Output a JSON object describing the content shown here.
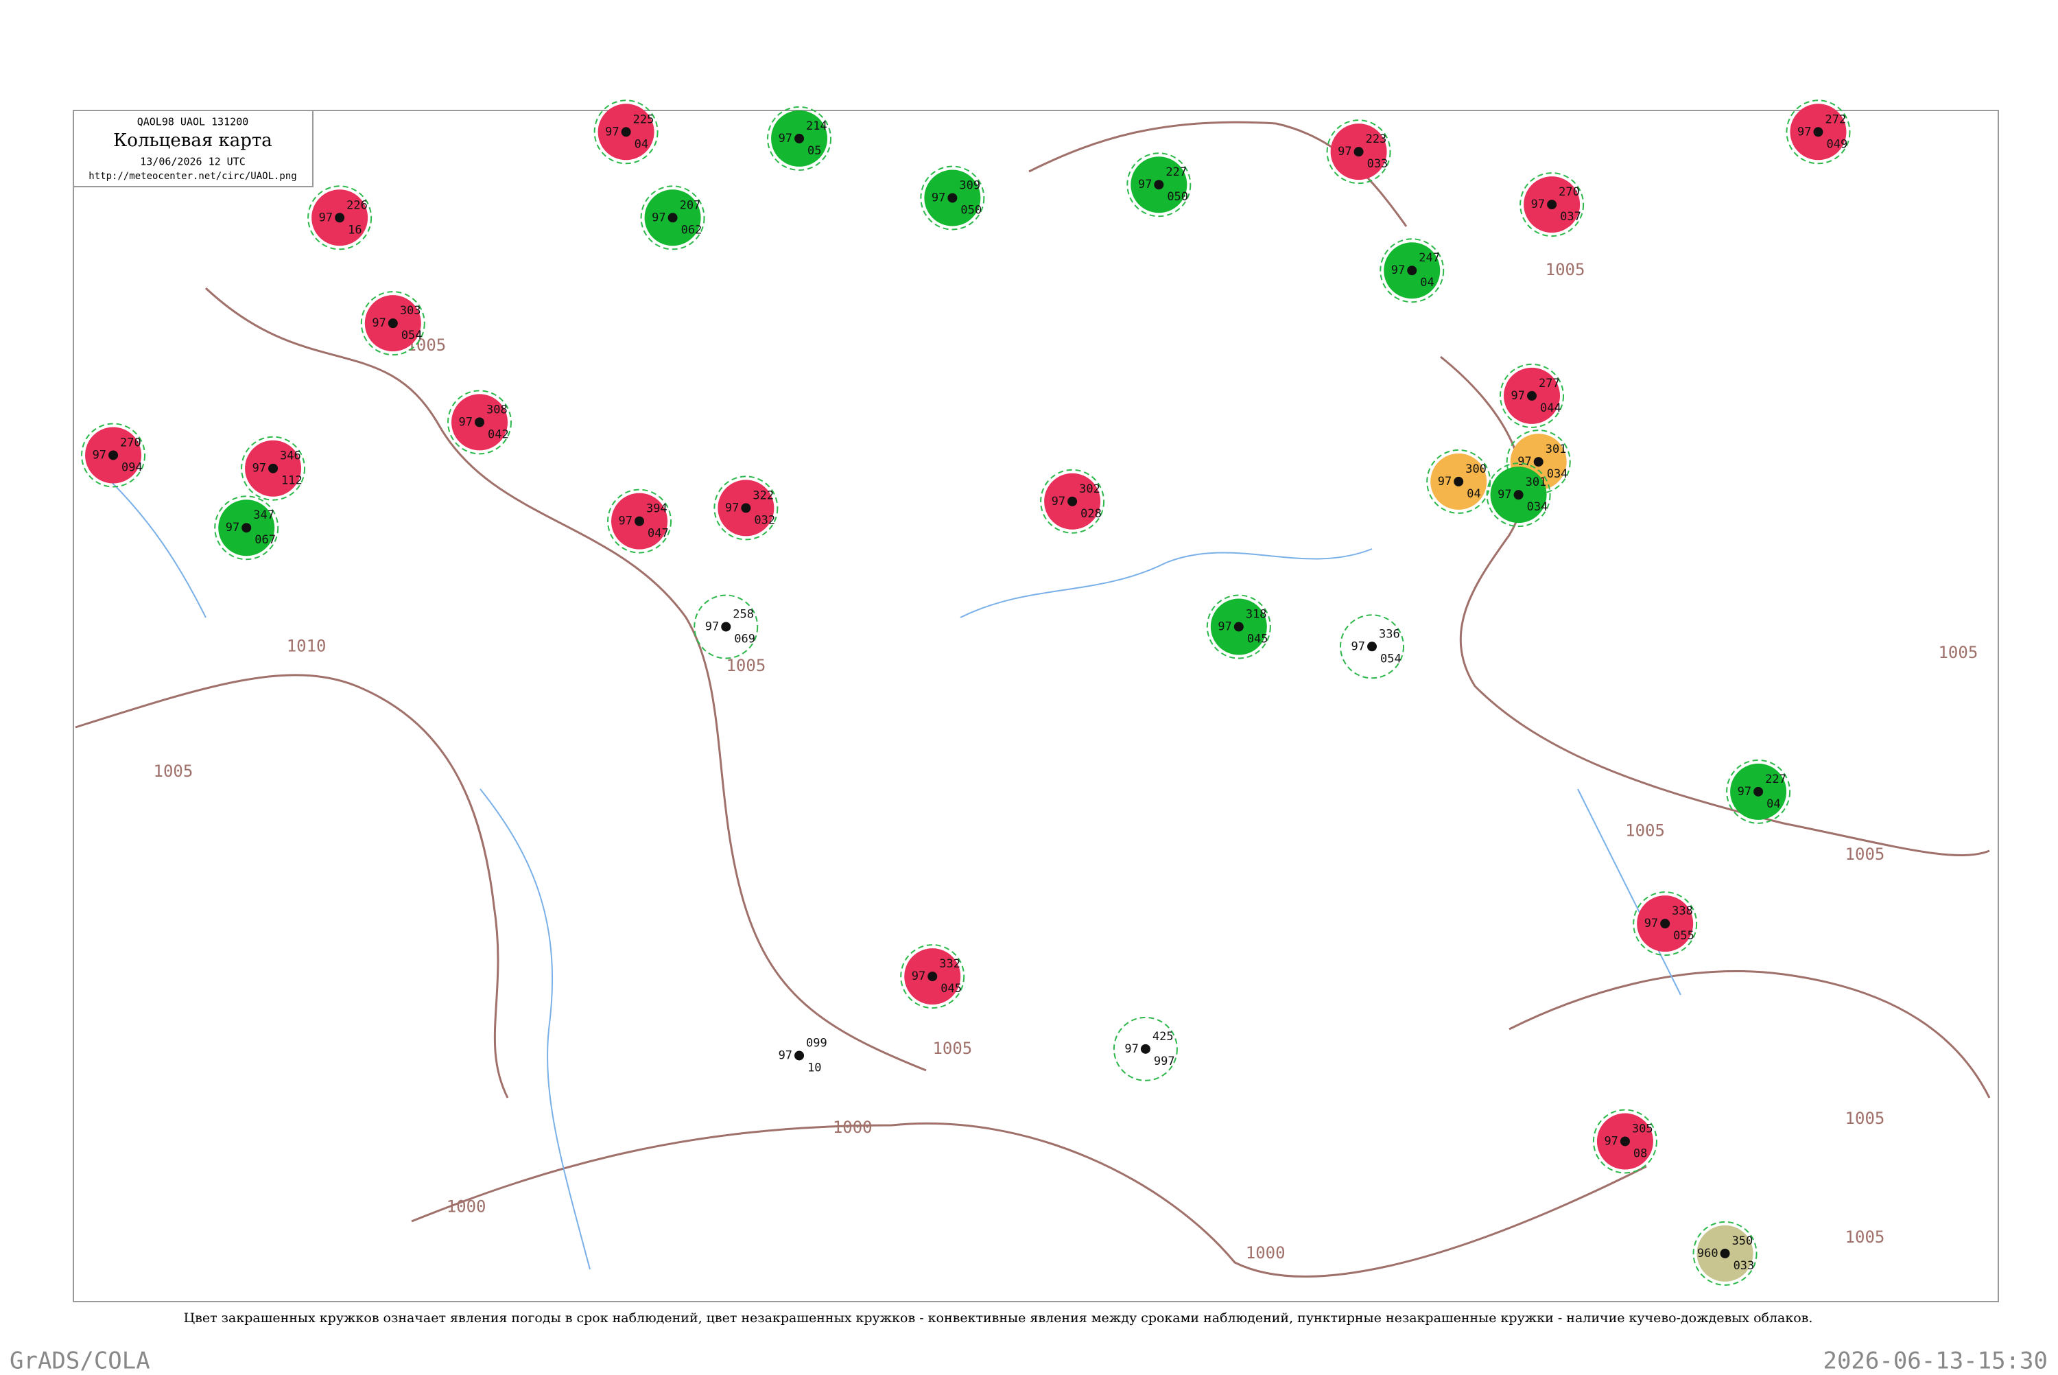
{
  "header": {
    "code": "QAOL98  UAOL  131200",
    "title": "Кольцевая карта",
    "date": "13/06/2026 12 UTC",
    "url": "http://meteocenter.net/circ/UAOL.png"
  },
  "isobar_labels": [
    "1005",
    "1010",
    "1005",
    "1000",
    "1005",
    "1005",
    "1000",
    "1000",
    "1005",
    "1005",
    "1005",
    "1005",
    "1005",
    "1005"
  ],
  "stations": [
    {
      "p": "226",
      "t": "97",
      "d": "16"
    },
    {
      "p": "225",
      "t": "97",
      "d": "04"
    },
    {
      "p": "207",
      "t": "97",
      "d": "062"
    },
    {
      "p": "214",
      "t": "97",
      "d": "05"
    },
    {
      "p": "309",
      "t": "97",
      "d": "050"
    },
    {
      "p": "227",
      "t": "97",
      "d": "050"
    },
    {
      "p": "223",
      "t": "97",
      "d": "033"
    },
    {
      "p": "247",
      "t": "97",
      "d": "04"
    },
    {
      "p": "270",
      "t": "97",
      "d": "037"
    },
    {
      "p": "272",
      "t": "97",
      "d": "049"
    },
    {
      "p": "303",
      "t": "97",
      "d": "054"
    },
    {
      "p": "308",
      "t": "97",
      "d": "042"
    },
    {
      "p": "346",
      "t": "97",
      "d": "112"
    },
    {
      "p": "270",
      "t": "97",
      "d": "094"
    },
    {
      "p": "347",
      "t": "97",
      "d": "067"
    },
    {
      "p": "394",
      "t": "97",
      "d": "047"
    },
    {
      "p": "322",
      "t": "97",
      "d": "032"
    },
    {
      "p": "302",
      "t": "97",
      "d": "028"
    },
    {
      "p": "318",
      "t": "97",
      "d": "045"
    },
    {
      "p": "277",
      "t": "97",
      "d": "044"
    },
    {
      "p": "301",
      "t": "97",
      "d": "034"
    },
    {
      "p": "300",
      "t": "97",
      "d": "04"
    },
    {
      "p": "301",
      "t": "97",
      "d": "034"
    },
    {
      "p": "227",
      "t": "97",
      "d": "04"
    },
    {
      "p": "338",
      "t": "97",
      "d": "055"
    },
    {
      "p": "332",
      "t": "97",
      "d": "045"
    },
    {
      "p": "305",
      "t": "97",
      "d": "08"
    },
    {
      "p": "350",
      "t": "960",
      "d": "033"
    },
    {
      "p": "258",
      "t": "97",
      "d": "069"
    },
    {
      "p": "336",
      "t": "97",
      "d": "054"
    },
    {
      "p": "425",
      "t": "97",
      "d": "997"
    },
    {
      "p": "099",
      "t": "97",
      "d": "10"
    }
  ],
  "caption": "Цвет закрашенных кружков означает явления погоды в срок наблюдений, цвет незакрашенных кружков - конвективные явления между сроками наблюдений, пунктирные незакрашенные кружки - наличие кучево-дождевых облаков.",
  "footer": {
    "left": "GrADS/COLA",
    "right": "2026-06-13-15:30"
  }
}
